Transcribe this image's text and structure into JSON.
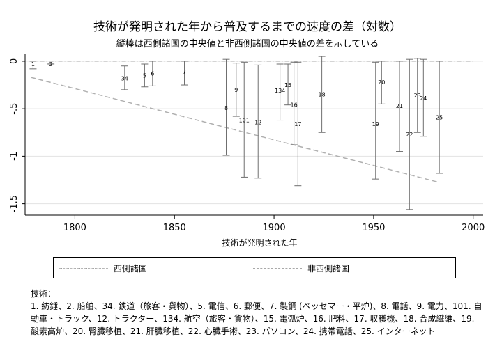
{
  "chart_data": {
    "type": "scatter",
    "title": "技術が発明された年から普及するまでの速度の差（対数）",
    "subtitle": "縦棒は西側諸国の中央値と非西側諸国の中央値の差を示している",
    "xlabel": "技術が発明された年",
    "ylabel": "",
    "xlim": [
      1775,
      2005
    ],
    "ylim": [
      -1.62,
      0.08
    ],
    "xticks": [
      1800,
      1850,
      1900,
      1950,
      2000
    ],
    "yticks": [
      0,
      -0.5,
      -1,
      -1.5
    ],
    "ytick_labels": [
      "0",
      "-.5",
      "-1",
      "-1.5"
    ],
    "grid": "horizontal",
    "legend": "bottom",
    "series": [
      {
        "name": "西側諸国",
        "style": "dash-dot",
        "color": "#a8a8a8",
        "x": [
          1778,
          2000
        ],
        "y": [
          0,
          0
        ]
      },
      {
        "name": "非西側諸国",
        "style": "dashed",
        "color": "#b0b0b0",
        "x": [
          1778,
          1982
        ],
        "y": [
          -0.17,
          -1.27
        ]
      }
    ],
    "points": [
      {
        "label": "1",
        "x": 1779,
        "y": -0.03,
        "low": -0.08,
        "high": 0.0
      },
      {
        "label": "2",
        "x": 1788,
        "y": -0.03,
        "low": -0.03,
        "high": -0.02
      },
      {
        "label": "34",
        "x": 1825,
        "y": -0.18,
        "low": -0.3,
        "high": -0.05
      },
      {
        "label": "5",
        "x": 1835,
        "y": -0.15,
        "low": -0.27,
        "high": -0.03
      },
      {
        "label": "6",
        "x": 1839,
        "y": -0.13,
        "low": -0.26,
        "high": 0.0
      },
      {
        "label": "7",
        "x": 1855,
        "y": -0.11,
        "low": -0.25,
        "high": 0.0
      },
      {
        "label": "8",
        "x": 1876,
        "y": -0.49,
        "low": -0.99,
        "high": 0.02
      },
      {
        "label": "9",
        "x": 1881,
        "y": -0.3,
        "low": -0.58,
        "high": -0.02
      },
      {
        "label": "101",
        "x": 1885,
        "y": -0.62,
        "low": -1.22,
        "high": -0.01
      },
      {
        "label": "12",
        "x": 1892,
        "y": -0.64,
        "low": -1.23,
        "high": -0.04
      },
      {
        "label": "134",
        "x": 1903,
        "y": -0.31,
        "low": -0.62,
        "high": -0.03
      },
      {
        "label": "15",
        "x": 1907,
        "y": -0.25,
        "low": -0.46,
        "high": -0.03
      },
      {
        "label": "16",
        "x": 1910,
        "y": -0.46,
        "low": -0.88,
        "high": -0.01
      },
      {
        "label": "17",
        "x": 1912,
        "y": -0.66,
        "low": -1.31,
        "high": -0.01
      },
      {
        "label": "18",
        "x": 1924,
        "y": -0.35,
        "low": -0.75,
        "high": 0.05
      },
      {
        "label": "19",
        "x": 1951,
        "y": -0.66,
        "low": -1.24,
        "high": -0.01
      },
      {
        "label": "20",
        "x": 1954,
        "y": -0.22,
        "low": -0.45,
        "high": 0.0
      },
      {
        "label": "21",
        "x": 1963,
        "y": -0.47,
        "low": -0.95,
        "high": 0.0
      },
      {
        "label": "22",
        "x": 1968,
        "y": -0.77,
        "low": -1.56,
        "high": 0.02
      },
      {
        "label": "23",
        "x": 1972,
        "y": -0.36,
        "low": -0.75,
        "high": 0.03
      },
      {
        "label": "24",
        "x": 1975,
        "y": -0.39,
        "low": -0.79,
        "high": 0.02
      },
      {
        "label": "25",
        "x": 1983,
        "y": -0.59,
        "low": -1.18,
        "high": 0.0
      }
    ]
  },
  "legend": {
    "western": "西側諸国",
    "non_western": "非西側諸国"
  },
  "note": {
    "heading": "技術：",
    "body": "1. 紡錘、2. 船舶、34. 鉄道（旅客・貨物）、5. 電信、6. 郵便、7. 製鋼 (ベッセマー・平炉)、8. 電話、9. 電力、101. 自動車・トラック、12. トラクター、134. 航空（旅客・貨物）、15. 電弧炉、16. 肥料、17. 収穫機、18. 合成繊維、19. 酸素高炉、20. 腎臓移植、21. 肝臓移植、22. 心臓手術、23. パソコン、24. 携帯電話、25. インターネット"
  }
}
